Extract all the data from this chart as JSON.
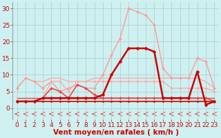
{
  "x": [
    0,
    1,
    2,
    3,
    4,
    5,
    6,
    7,
    8,
    9,
    10,
    11,
    12,
    13,
    14,
    15,
    16,
    17,
    18,
    19,
    20,
    21,
    22,
    23
  ],
  "series": [
    {
      "y": [
        6,
        9,
        8,
        6,
        8,
        5,
        6,
        7,
        6,
        6,
        10,
        16,
        21,
        30,
        29,
        28,
        25,
        12,
        9,
        9,
        9,
        15,
        14,
        6
      ],
      "color": "#ff9999",
      "lw": 1.0,
      "marker": "D",
      "ms": 2.0,
      "zorder": 2
    },
    {
      "y": [
        6,
        9,
        8,
        8,
        9,
        9,
        8,
        8,
        8,
        9,
        9,
        9,
        9,
        9,
        9,
        9,
        9,
        9,
        9,
        9,
        9,
        9,
        8,
        6
      ],
      "color": "#ffaaaa",
      "lw": 1.0,
      "marker": null,
      "ms": 0,
      "zorder": 1
    },
    {
      "y": [
        2,
        2,
        2,
        3,
        8,
        8,
        5,
        8,
        8,
        8,
        8,
        8,
        8,
        8,
        8,
        8,
        8,
        8,
        6,
        6,
        6,
        6,
        6,
        5
      ],
      "color": "#ffaaaa",
      "lw": 1.0,
      "marker": "D",
      "ms": 1.8,
      "zorder": 2
    },
    {
      "y": [
        2,
        2,
        2,
        3,
        3,
        3,
        3,
        3,
        3,
        3,
        4,
        10,
        14,
        18,
        18,
        18,
        17,
        3,
        3,
        3,
        3,
        11,
        1,
        2
      ],
      "color": "#cc0000",
      "lw": 1.8,
      "marker": "D",
      "ms": 2.5,
      "zorder": 5
    },
    {
      "y": [
        2,
        2,
        2,
        2,
        2,
        2,
        2,
        2,
        2,
        2,
        2,
        2,
        2,
        2,
        2,
        2,
        2,
        2,
        2,
        2,
        2,
        2,
        2,
        2
      ],
      "color": "#cc0000",
      "lw": 1.2,
      "marker": "D",
      "ms": 1.5,
      "zorder": 4
    },
    {
      "y": [
        2,
        2,
        2,
        3,
        6,
        5,
        3,
        7,
        6,
        4,
        3,
        3,
        3,
        3,
        3,
        3,
        3,
        3,
        3,
        3,
        3,
        3,
        3,
        2
      ],
      "color": "#ee4444",
      "lw": 1.2,
      "marker": "D",
      "ms": 2.0,
      "zorder": 3
    },
    {
      "y": [
        3,
        3,
        3,
        3,
        3,
        3,
        3,
        3,
        3,
        3,
        3,
        3,
        3,
        3,
        3,
        3,
        3,
        3,
        3,
        3,
        3,
        3,
        3,
        3
      ],
      "color": "#ee4444",
      "lw": 1.0,
      "marker": null,
      "ms": 0,
      "zorder": 2
    }
  ],
  "arrows": {
    "y": -1.8,
    "color": "#ee4444",
    "lw": 0.7
  },
  "xlabel": "Vent moyen/en rafales ( km/h )",
  "xlim": [
    -0.5,
    23.5
  ],
  "ylim": [
    -3.5,
    32
  ],
  "yticks": [
    0,
    5,
    10,
    15,
    20,
    25,
    30
  ],
  "xticks": [
    0,
    1,
    2,
    3,
    4,
    5,
    6,
    7,
    8,
    9,
    10,
    11,
    12,
    13,
    14,
    15,
    16,
    17,
    18,
    19,
    20,
    21,
    22,
    23
  ],
  "bg_color": "#cef0f0",
  "grid_color": "#aacccc",
  "text_color": "#cc0000",
  "xlabel_fontsize": 7.5,
  "tick_fontsize": 6.5
}
